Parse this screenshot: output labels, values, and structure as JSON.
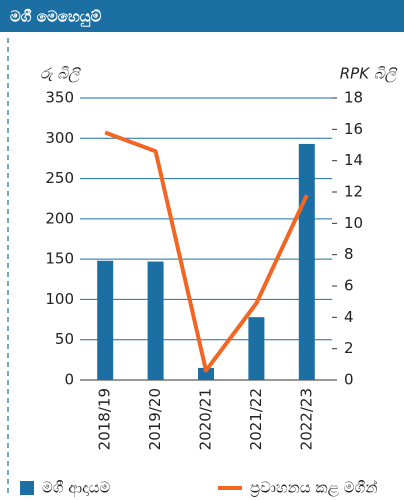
{
  "chart_data": {
    "type": "bar",
    "title": "මගී මෙහෙයුම්",
    "ylabel": "රු බිලි",
    "y2label": "RPK බිලි",
    "categories": [
      "2018/19",
      "2019/20",
      "2020/21",
      "2021/22",
      "2022/23"
    ],
    "series": [
      {
        "name": "මගී ආදායම",
        "type": "bar",
        "color": "#1b6fa3",
        "axis": "y",
        "values": [
          148,
          147,
          15,
          78,
          293
        ]
      },
      {
        "name": "ප්‍රවාහනය කළ මගීන්",
        "type": "line",
        "color": "#f26522",
        "axis": "y2",
        "values": [
          15.8,
          14.6,
          0.6,
          4.9,
          11.8
        ]
      }
    ],
    "ylim": [
      0,
      350
    ],
    "yticks": [
      0,
      50,
      100,
      150,
      200,
      250,
      300,
      350
    ],
    "y2lim": [
      0,
      18
    ],
    "y2ticks": [
      0,
      2,
      4,
      6,
      8,
      10,
      12,
      14,
      16,
      18
    ],
    "grid": true,
    "legend": "bottom"
  }
}
